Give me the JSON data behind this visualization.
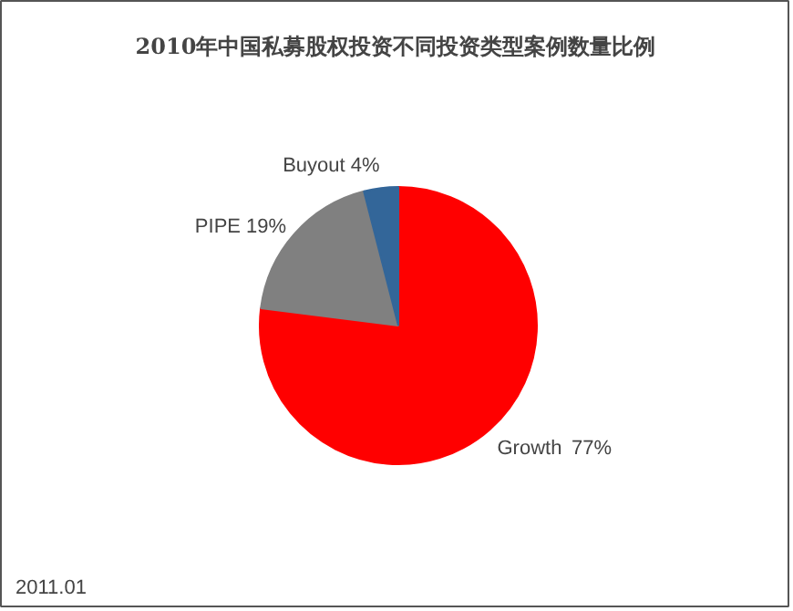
{
  "chart_data": {
    "type": "pie",
    "title": "2010年中国私募股权投资不同投资类型案例数量比例",
    "categories": [
      "Growth",
      "PIPE",
      "Buyout"
    ],
    "values": [
      77,
      19,
      4
    ],
    "colors": [
      "#ff0000",
      "#808080",
      "#336699"
    ],
    "value_labels": [
      "77%",
      "19%",
      "4%"
    ],
    "annotations": [
      "2011.01"
    ]
  }
}
